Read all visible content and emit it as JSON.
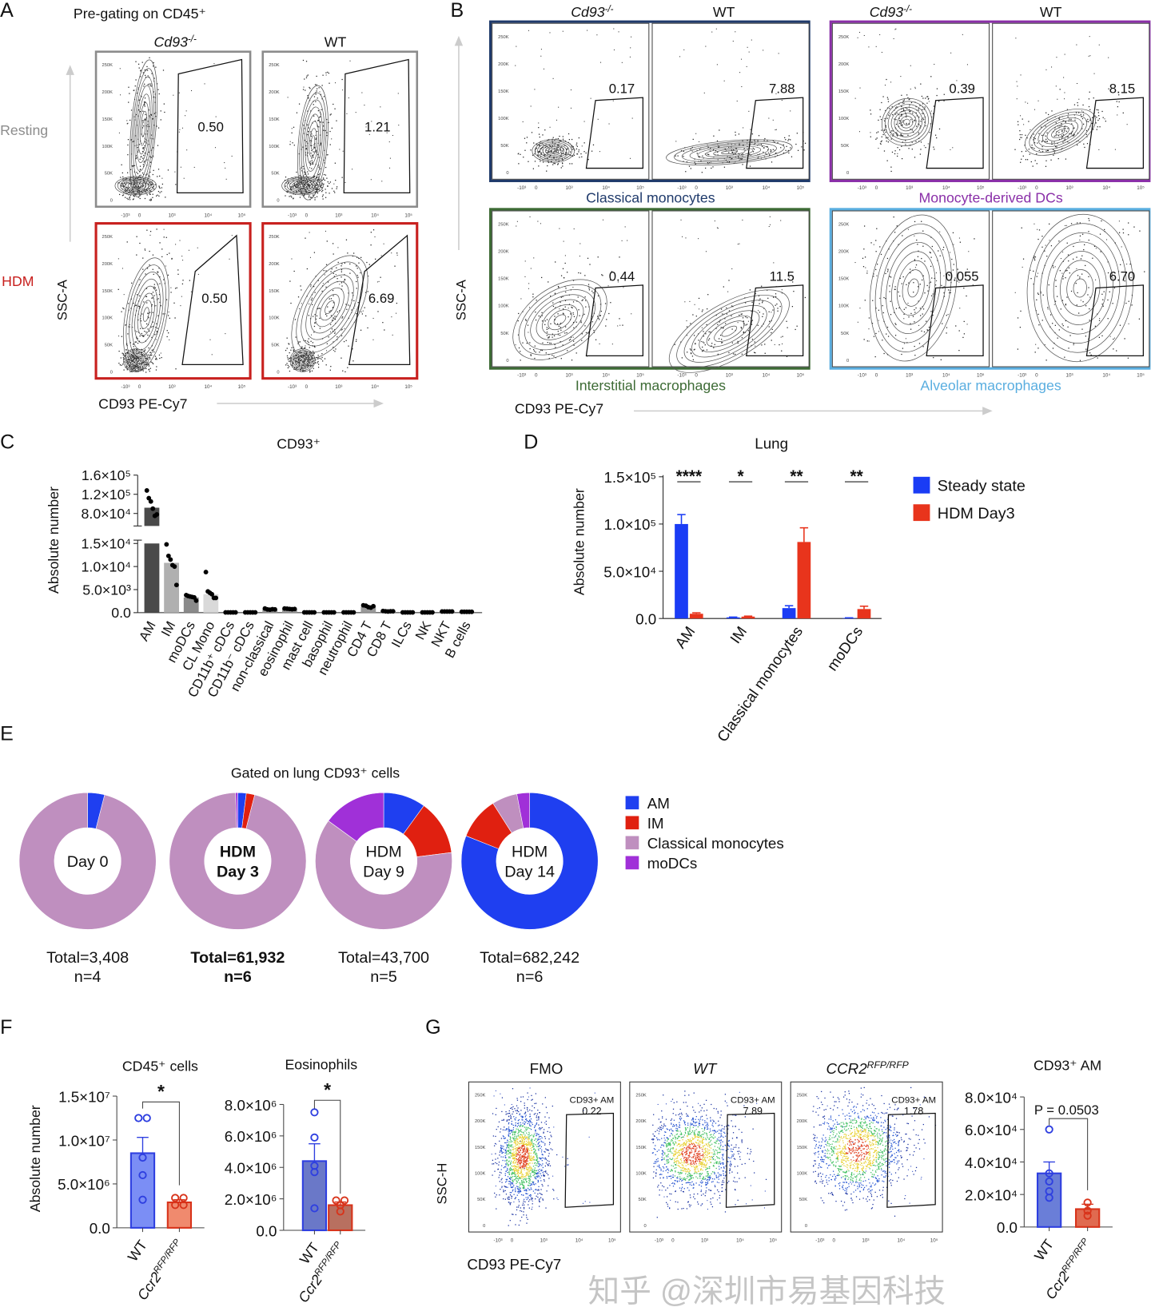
{
  "figure": {
    "panel_labels": [
      "A",
      "B",
      "C",
      "D",
      "E",
      "F",
      "G"
    ],
    "watermark": "知乎 @深圳市易基因科技"
  },
  "chart_data": [
    {
      "type": "flow_cytometry",
      "title": "Pre-gating on CD45⁺",
      "columns": [
        {
          "base": "Cd93",
          "sup": "-/-",
          "italic": true
        },
        {
          "base": "WT",
          "sup": "",
          "italic": false
        }
      ],
      "rows": [
        "Resting",
        "HDM"
      ],
      "row_colors": [
        "#8c8c8c",
        "#c8201e"
      ],
      "gate_values": [
        [
          "0.50",
          "1.21"
        ],
        [
          "0.50",
          "6.69"
        ]
      ],
      "ylabel": "SSC-A",
      "xlabel": "CD93 PE-Cy7",
      "y_ticks": [
        "0",
        "50K",
        "100K",
        "150K",
        "200K",
        "250K"
      ],
      "x_ticks": [
        "-10³",
        "0",
        "10³",
        "10⁴",
        "10⁵"
      ]
    },
    {
      "type": "flow_cytometry",
      "columns": [
        {
          "base": "Cd93",
          "sup": "-/-",
          "italic": true
        },
        {
          "base": "WT",
          "sup": "",
          "italic": false
        },
        {
          "base": "Cd93",
          "sup": "-/-",
          "italic": true
        },
        {
          "base": "WT",
          "sup": "",
          "italic": false
        }
      ],
      "populations": [
        {
          "name": "Classical monocytes",
          "color": "#1f3a6b",
          "gate_values": [
            "0.17",
            "7.88"
          ]
        },
        {
          "name": "Monocyte-derived DCs",
          "color": "#8a2fa8",
          "gate_values": [
            "0.39",
            "8.15"
          ]
        },
        {
          "name": "Interstitial macrophages",
          "color": "#3d6b35",
          "gate_values": [
            "0.44",
            "11.5"
          ]
        },
        {
          "name": "Alveolar macrophages",
          "color": "#5aaee0",
          "gate_values": [
            "0.055",
            "6.70"
          ]
        }
      ],
      "ylabel": "SSC-A",
      "xlabel": "CD93 PE-Cy7",
      "y_ticks": [
        "0",
        "50K",
        "100K",
        "150K",
        "200K",
        "250K"
      ],
      "x_ticks": [
        "-10³",
        "0",
        "10³",
        "10⁴",
        "10⁵"
      ]
    },
    {
      "type": "bar",
      "title": "CD93⁺",
      "ylabel": "Absolute number",
      "y_scale": "broken",
      "y_ticks_lower": [
        "0.0",
        "5.0×10³",
        "1.0×10⁴",
        "1.5×10⁴"
      ],
      "y_ticks_upper": [
        "8.0×10⁴",
        "1.2×10⁵",
        "1.6×10⁵"
      ],
      "ylim_lower": [
        0,
        15000
      ],
      "ylim_upper": [
        60000,
        160000
      ],
      "categories": [
        "AM",
        "IM",
        "moDCs",
        "CL Mono",
        "CD11b⁺ cDCs",
        "CD11b⁻ cDCs",
        "non-classical",
        "eosinophil",
        "mast cell",
        "basophil",
        "neutrophil",
        "CD4 T",
        "CD8 T",
        "ILCs",
        "NK",
        "NKT",
        "B cells"
      ],
      "values": [
        92000,
        10800,
        3300,
        4000,
        60,
        60,
        700,
        800,
        60,
        60,
        60,
        1300,
        300,
        60,
        60,
        250,
        180
      ],
      "bar_colors": [
        "#4a4a4a",
        "#b0b0b0",
        "#8a8a8a",
        "#d9d9d9",
        "#9a9a9a",
        "#9a9a9a",
        "#9a9a9a",
        "#9a9a9a",
        "#9a9a9a",
        "#9a9a9a",
        "#9a9a9a",
        "#9a9a9a",
        "#9a9a9a",
        "#9a9a9a",
        "#9a9a9a",
        "#9a9a9a",
        "#9a9a9a"
      ],
      "points": [
        [
          128000,
          112000,
          105000,
          90000,
          75000,
          78000
        ],
        [
          15500,
          12300,
          11500,
          10300,
          10000,
          6000
        ],
        [
          3800,
          3600,
          3500,
          3400,
          3300,
          2600
        ],
        [
          8800,
          4600,
          4300,
          4000,
          3200,
          3200
        ],
        [
          60,
          60,
          60,
          60,
          60
        ],
        [
          60,
          60,
          60,
          60,
          60
        ],
        [
          900,
          700,
          650,
          750,
          700
        ],
        [
          900,
          850,
          800,
          750,
          800
        ],
        [
          60,
          60,
          60,
          60,
          60
        ],
        [
          60,
          60,
          60,
          60,
          60
        ],
        [
          60,
          60,
          60,
          60,
          60
        ],
        [
          1600,
          1500,
          1200,
          1100,
          1400
        ],
        [
          350,
          300,
          250,
          300,
          300
        ],
        [
          60,
          60,
          60,
          60,
          60
        ],
        [
          60,
          60,
          60,
          60,
          60
        ],
        [
          250,
          250,
          250,
          250,
          250
        ],
        [
          180,
          180,
          180,
          180,
          180
        ]
      ]
    },
    {
      "type": "bar",
      "title": "Lung",
      "ylabel": "Absolute number",
      "ylim": [
        0,
        150000
      ],
      "y_ticks": [
        {
          "v": 0,
          "label": "0.0"
        },
        {
          "v": 50000,
          "label": "5.0×10⁴"
        },
        {
          "v": 100000,
          "label": "1.0×10⁵"
        },
        {
          "v": 150000,
          "label": "1.5×10⁵"
        }
      ],
      "categories": [
        "AM",
        "IM",
        "Classical monocytes",
        "moDCs"
      ],
      "significance": [
        "****",
        "*",
        "**",
        "**"
      ],
      "legend_position": "right",
      "series": [
        {
          "name": "Steady state",
          "color": "#1a3cf5",
          "values": [
            100000,
            1200,
            11000,
            500
          ],
          "errors": [
            10000,
            300,
            2500,
            200
          ]
        },
        {
          "name": "HDM Day3",
          "color": "#e8341c",
          "values": [
            5000,
            2000,
            81000,
            10000
          ],
          "errors": [
            1000,
            500,
            15000,
            3000
          ]
        }
      ]
    },
    {
      "type": "pie",
      "style": "donut",
      "title": "Gated on lung CD93⁺ cells",
      "legend_position": "right",
      "categories": [
        "AM",
        "IM",
        "Classical monocytes",
        "moDCs"
      ],
      "colors": [
        "#1f3ff0",
        "#e02010",
        "#bf8fbf",
        "#a030d8"
      ],
      "donuts": [
        {
          "center": [
            "Day 0"
          ],
          "bold": false,
          "total": "Total=3,408",
          "n": "n=4",
          "values": [
            4,
            0,
            96,
            0
          ]
        },
        {
          "center": [
            "HDM",
            "Day 3"
          ],
          "bold": true,
          "total": "Total=61,932",
          "n": "n=6",
          "values": [
            2,
            2,
            95.5,
            0.5
          ]
        },
        {
          "center": [
            "HDM",
            "Day 9"
          ],
          "bold": false,
          "total": "Total=43,700",
          "n": "n=5",
          "values": [
            10,
            13,
            62,
            15
          ]
        },
        {
          "center": [
            "HDM",
            "Day 14"
          ],
          "bold": false,
          "total": "Total=682,242",
          "n": "n=6",
          "values": [
            81,
            10,
            6,
            3
          ]
        }
      ]
    },
    {
      "type": "bar",
      "title": "CD45⁺ cells",
      "ylabel": "Absolute number",
      "ylim": [
        0,
        15000000
      ],
      "y_ticks": [
        {
          "v": 0,
          "label": "0.0"
        },
        {
          "v": 5000000,
          "label": "5.0×10⁶"
        },
        {
          "v": 10000000,
          "label": "1.0×10⁷"
        },
        {
          "v": 15000000,
          "label": "1.5×10⁷"
        }
      ],
      "categories": [
        {
          "base": "WT",
          "sup": ""
        },
        {
          "base": "Ccr2",
          "sup": "RFP/RFP"
        }
      ],
      "values": [
        8500000,
        2900000
      ],
      "errors": [
        1800000,
        300000
      ],
      "points": [
        [
          12500000,
          12500000,
          8000000,
          6000000,
          3200000
        ],
        [
          3400000,
          3400000,
          2600000,
          2600000
        ]
      ],
      "fill_colors": [
        "#7b8ef5",
        "#f08a6e"
      ],
      "stroke_colors": [
        "#2e3fe0",
        "#d8331a"
      ],
      "significance": "*"
    },
    {
      "type": "bar",
      "title": "Eosinophils",
      "ylim": [
        0,
        8000000
      ],
      "y_ticks": [
        {
          "v": 0,
          "label": "0.0"
        },
        {
          "v": 2000000,
          "label": "2.0×10⁶"
        },
        {
          "v": 4000000,
          "label": "4.0×10⁶"
        },
        {
          "v": 6000000,
          "label": "6.0×10⁶"
        },
        {
          "v": 8000000,
          "label": "8.0×10⁶"
        }
      ],
      "categories": [
        {
          "base": "WT",
          "sup": ""
        },
        {
          "base": "Ccr2",
          "sup": "RFP/RFP"
        }
      ],
      "values": [
        4400000,
        1600000
      ],
      "errors": [
        1100000,
        200000
      ],
      "points": [
        [
          7500000,
          5900000,
          4100000,
          3700000,
          1400000
        ],
        [
          1900000,
          1900000,
          1600000,
          1200000
        ]
      ],
      "fill_colors": [
        "#6a78c8",
        "#b87060"
      ],
      "stroke_colors": [
        "#2e3fe0",
        "#d8331a"
      ],
      "significance": "*"
    },
    {
      "type": "flow_cytometry",
      "columns": [
        {
          "base": "FMO",
          "sup": "",
          "italic": false
        },
        {
          "base": "WT",
          "sup": "",
          "italic": true
        },
        {
          "base": "CCR2",
          "sup": "RFP/RFP",
          "italic": true
        }
      ],
      "gate_name": "CD93+ AM",
      "gate_values": [
        "0.22",
        "7.89",
        "1.78"
      ],
      "ylabel": "SSC-H",
      "xlabel": "CD93 PE-Cy7",
      "y_ticks": [
        "0",
        "50K",
        "100K",
        "150K",
        "200K",
        "250K"
      ],
      "x_ticks": [
        "-10³",
        "0",
        "10³",
        "10⁴",
        "10⁵"
      ]
    },
    {
      "type": "bar",
      "title": "CD93⁺ AM",
      "ylim": [
        0,
        80000
      ],
      "y_ticks": [
        {
          "v": 0,
          "label": "0.0"
        },
        {
          "v": 20000,
          "label": "2.0×10⁴"
        },
        {
          "v": 40000,
          "label": "4.0×10⁴"
        },
        {
          "v": 60000,
          "label": "6.0×10⁴"
        },
        {
          "v": 80000,
          "label": "8.0×10⁴"
        }
      ],
      "categories": [
        {
          "base": "WT",
          "sup": ""
        },
        {
          "base": "Ccr2",
          "sup": "RFP/RFP"
        }
      ],
      "values": [
        33000,
        11000
      ],
      "errors": [
        7000,
        3000
      ],
      "points": [
        [
          60000,
          33000,
          28000,
          22000,
          18000
        ],
        [
          15000,
          10000,
          7000
        ]
      ],
      "fill_colors": [
        "#6a7ed8",
        "#e06a50"
      ],
      "stroke_colors": [
        "#2e3fe0",
        "#d8331a"
      ],
      "annotation": "P = 0.0503"
    }
  ]
}
